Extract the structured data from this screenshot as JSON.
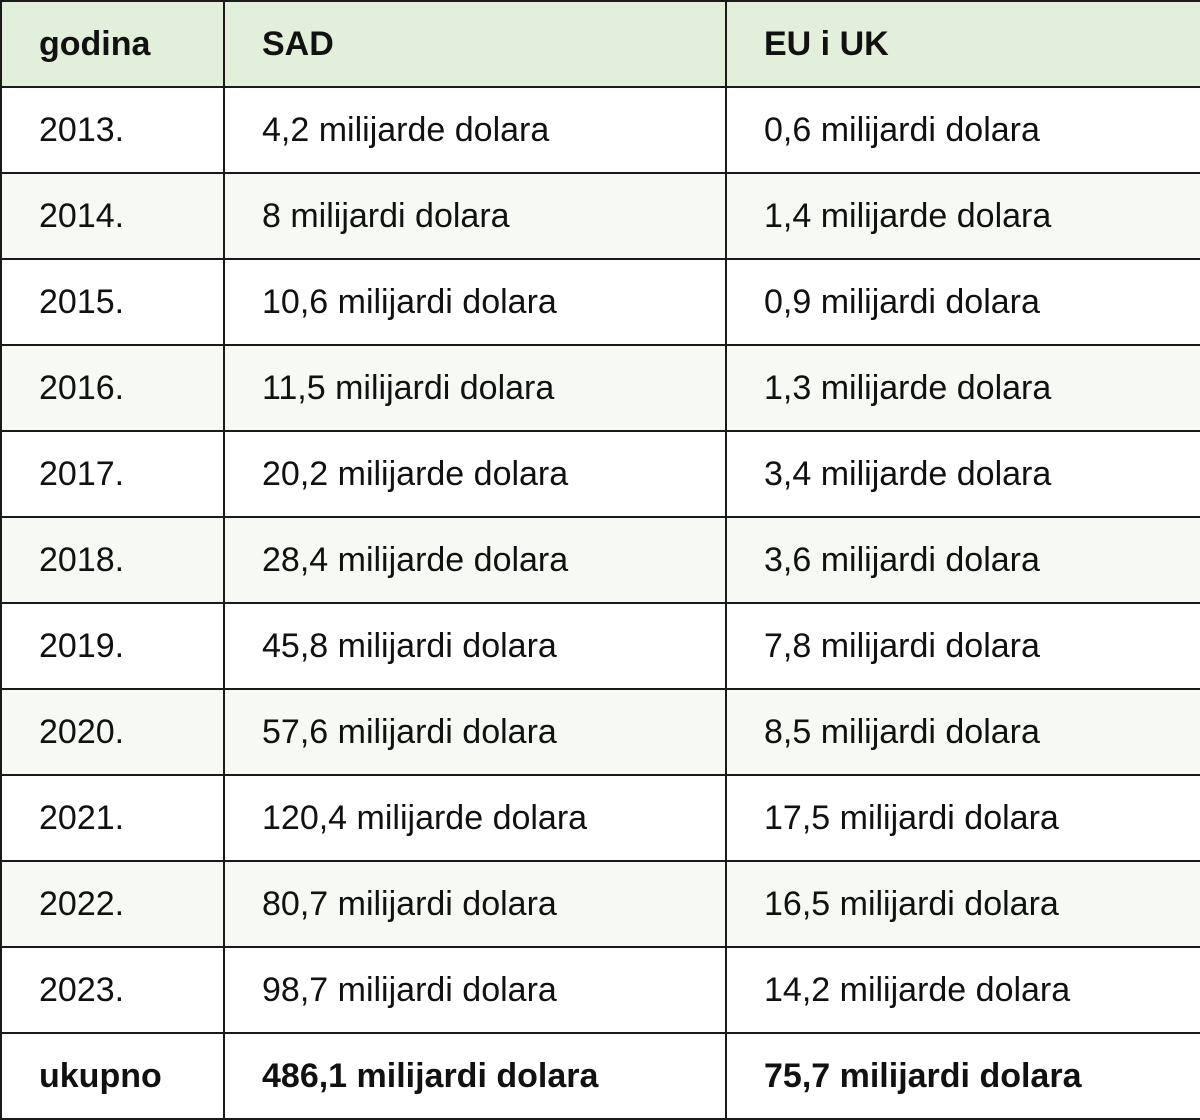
{
  "table": {
    "headers": [
      "godina",
      "SAD",
      "EU i UK"
    ],
    "rows": [
      [
        "2013.",
        "4,2 milijarde dolara",
        "0,6 milijardi dolara"
      ],
      [
        "2014.",
        "8 milijardi dolara",
        "1,4 milijarde dolara"
      ],
      [
        "2015.",
        "10,6 milijardi dolara",
        "0,9 milijardi dolara"
      ],
      [
        "2016.",
        "11,5 milijardi dolara",
        "1,3 milijarde dolara"
      ],
      [
        "2017.",
        "20,2 milijarde dolara",
        "3,4 milijarde dolara"
      ],
      [
        "2018.",
        "28,4 milijarde dolara",
        "3,6 milijardi dolara"
      ],
      [
        "2019.",
        "45,8 milijardi dolara",
        "7,8 milijardi dolara"
      ],
      [
        "2020.",
        "57,6 milijardi dolara",
        "8,5 milijardi dolara"
      ],
      [
        "2021.",
        "120,4 milijarde dolara",
        "17,5 milijardi dolara"
      ],
      [
        "2022.",
        "80,7 milijardi dolara",
        "16,5 milijardi dolara"
      ],
      [
        "2023.",
        "98,7 milijardi dolara",
        "14,2 milijarde dolara"
      ]
    ],
    "total": [
      "ukupno",
      "486,1 milijardi dolara",
      "75,7 milijardi dolara"
    ]
  },
  "colors": {
    "header_bg": "#e2efda",
    "alt_row_bg": "#f7f9f4",
    "border": "#1a1a1a",
    "text": "#111111"
  }
}
